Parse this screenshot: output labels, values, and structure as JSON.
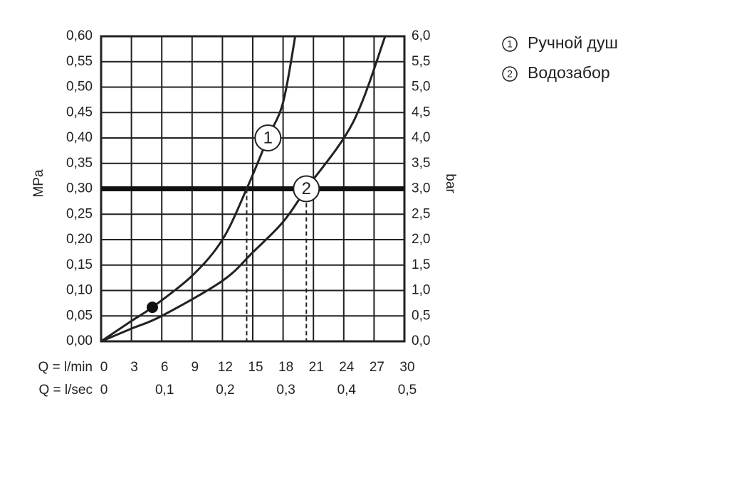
{
  "chart_data": {
    "type": "line",
    "ylabel": "MPa",
    "y2label": "bar",
    "xlabel": "Q = l/min",
    "x2label": "Q = l/sec",
    "xlim": [
      0,
      30
    ],
    "xticks": [
      0,
      3,
      6,
      9,
      12,
      15,
      18,
      21,
      24,
      27,
      30
    ],
    "x2lim": [
      0,
      0.5
    ],
    "x2ticks": [
      0,
      {
        "value": 0.1,
        "label": "0,1"
      },
      {
        "value": 0.2,
        "label": "0,2"
      },
      {
        "value": 0.3,
        "label": "0,3"
      },
      {
        "value": 0.4,
        "label": "0,4"
      },
      {
        "value": 0.5,
        "label": "0,5"
      }
    ],
    "ylim": [
      0,
      0.6
    ],
    "yticks": [
      {
        "value": 0,
        "label": "0,00"
      },
      {
        "value": 0.05,
        "label": "0,05"
      },
      {
        "value": 0.1,
        "label": "0,10"
      },
      {
        "value": 0.15,
        "label": "0,15"
      },
      {
        "value": 0.2,
        "label": "0,20"
      },
      {
        "value": 0.25,
        "label": "0,25"
      },
      {
        "value": 0.3,
        "label": "0,30"
      },
      {
        "value": 0.35,
        "label": "0,35"
      },
      {
        "value": 0.4,
        "label": "0,40"
      },
      {
        "value": 0.45,
        "label": "0,45"
      },
      {
        "value": 0.5,
        "label": "0,50"
      },
      {
        "value": 0.55,
        "label": "0,55"
      },
      {
        "value": 0.6,
        "label": "0,60"
      }
    ],
    "y2lim": [
      0,
      6
    ],
    "y2ticks": [
      {
        "value": 0,
        "label": "0,0"
      },
      {
        "value": 0.5,
        "label": "0,5"
      },
      {
        "value": 1,
        "label": "1,0"
      },
      {
        "value": 1.5,
        "label": "1,5"
      },
      {
        "value": 2,
        "label": "2,0"
      },
      {
        "value": 2.5,
        "label": "2,5"
      },
      {
        "value": 3,
        "label": "3,0"
      },
      {
        "value": 3.5,
        "label": "3,5"
      },
      {
        "value": 4,
        "label": "4,0"
      },
      {
        "value": 4.5,
        "label": "4,5"
      },
      {
        "value": 5,
        "label": "5,0"
      },
      {
        "value": 5.5,
        "label": "5,5"
      },
      {
        "value": 6,
        "label": "6,0"
      }
    ],
    "grid": true,
    "reference_y": 0.3,
    "dashed_x": [
      14.4,
      20.3
    ],
    "marker": {
      "x": 5.07,
      "y": 0.067
    },
    "series": [
      {
        "name": "Ручной душ",
        "curve_label": "1",
        "color": "#222",
        "x": [
          0,
          3,
          5.07,
          9,
          12,
          14.4,
          16.5,
          18,
          19.2
        ],
        "values": [
          0,
          0.04,
          0.067,
          0.129,
          0.2,
          0.3,
          0.4,
          0.47,
          0.6
        ]
      },
      {
        "name": "Водозабор",
        "curve_label": "2",
        "color": "#222",
        "x": [
          0,
          3,
          6,
          12,
          15,
          18,
          20.3,
          24.9,
          28.1
        ],
        "values": [
          0,
          0.025,
          0.05,
          0.119,
          0.175,
          0.235,
          0.3,
          0.43,
          0.6
        ]
      }
    ]
  }
}
